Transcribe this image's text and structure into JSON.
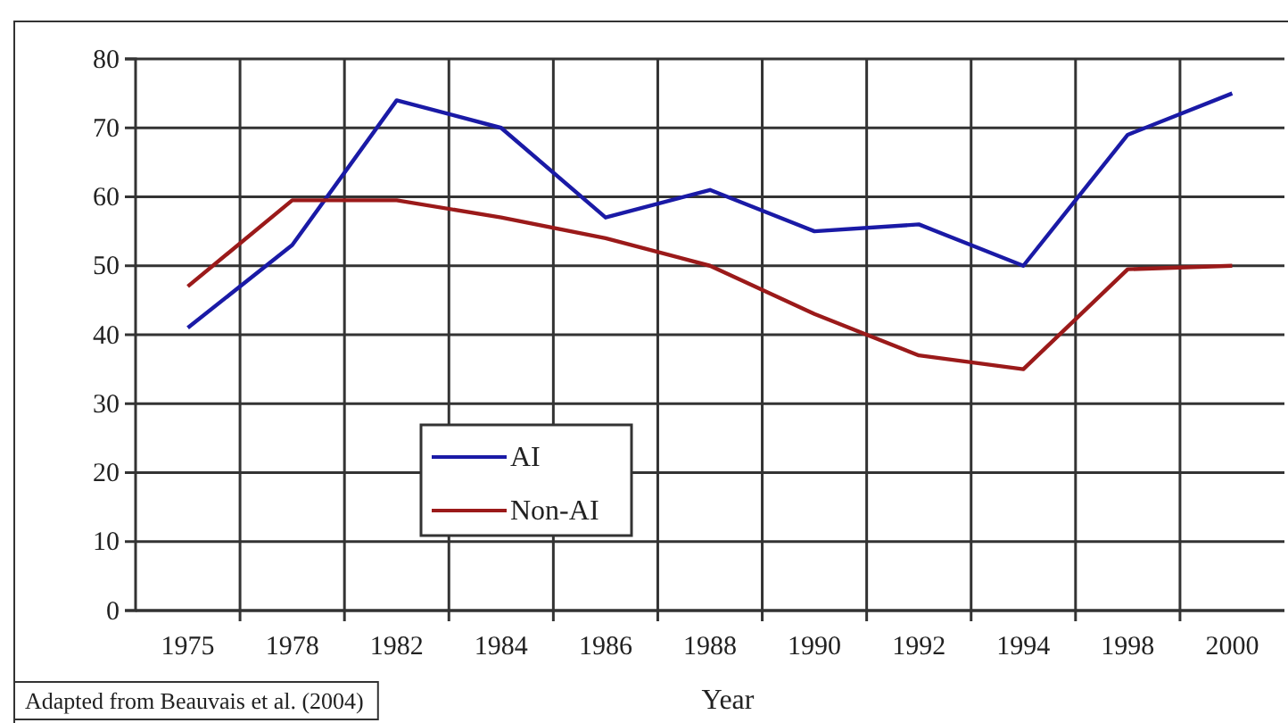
{
  "chart_data": {
    "type": "line",
    "xlabel": "Year",
    "categories": [
      "1975",
      "1978",
      "1982",
      "1984",
      "1986",
      "1988",
      "1990",
      "1992",
      "1994",
      "1998",
      "2000"
    ],
    "series": [
      {
        "name": "AI",
        "color": "#1a1aa6",
        "values": [
          41,
          53,
          74,
          70,
          57,
          61,
          55,
          56,
          50,
          69,
          75
        ]
      },
      {
        "name": "Non-AI",
        "color": "#9b1a1a",
        "values": [
          47,
          59.5,
          59.5,
          57,
          54,
          50,
          43,
          37,
          35,
          49.5,
          50
        ]
      }
    ],
    "ylim": [
      0,
      80
    ],
    "yticks": [
      0,
      10,
      20,
      30,
      40,
      50,
      60,
      70,
      80
    ],
    "grid": true,
    "legend": "bottom left",
    "marker": "none",
    "line_style": "solid",
    "annotations": [
      "Adapted from Beauvais et al. (2004)"
    ]
  }
}
